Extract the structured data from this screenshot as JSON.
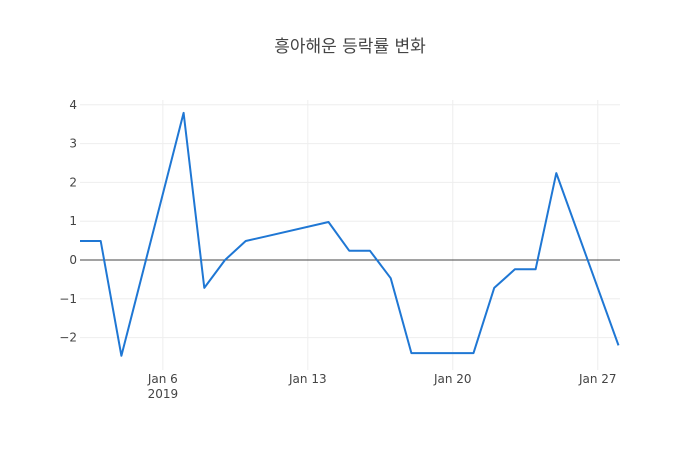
{
  "chart_data": {
    "type": "line",
    "title": "흥아해운 등락률 변화",
    "xlabel": "",
    "ylabel": "",
    "x": [
      "2019-01-02",
      "2019-01-03",
      "2019-01-04",
      "2019-01-07",
      "2019-01-08",
      "2019-01-09",
      "2019-01-10",
      "2019-01-11",
      "2019-01-14",
      "2019-01-15",
      "2019-01-16",
      "2019-01-17",
      "2019-01-18",
      "2019-01-21",
      "2019-01-22",
      "2019-01-23",
      "2019-01-24",
      "2019-01-25",
      "2019-01-28"
    ],
    "series": [
      {
        "name": "등락률",
        "color": "#1f77d4",
        "values": [
          0.49,
          0.49,
          -2.47,
          3.79,
          -0.72,
          0.0,
          0.49,
          0.61,
          0.98,
          0.24,
          0.24,
          -0.47,
          -2.4,
          -2.4,
          -0.72,
          -0.24,
          -0.24,
          2.24,
          -2.2
        ]
      }
    ],
    "x_ticks": [
      {
        "date": "2019-01-06",
        "label": "Jan 6",
        "sublabel": "2019"
      },
      {
        "date": "2019-01-13",
        "label": "Jan 13",
        "sublabel": ""
      },
      {
        "date": "2019-01-20",
        "label": "Jan 20",
        "sublabel": ""
      },
      {
        "date": "2019-01-27",
        "label": "Jan 27",
        "sublabel": ""
      }
    ],
    "y_ticks": [
      4,
      3,
      2,
      1,
      0,
      -1,
      -2
    ],
    "y_tick_labels": [
      "4",
      "3",
      "2",
      "1",
      "0",
      "−1",
      "−2"
    ],
    "xlim": [
      "2019-01-02",
      "2019-01-28"
    ],
    "ylim": [
      -2.6,
      4.1
    ],
    "grid": true,
    "zeroline": true,
    "legend": "none"
  }
}
